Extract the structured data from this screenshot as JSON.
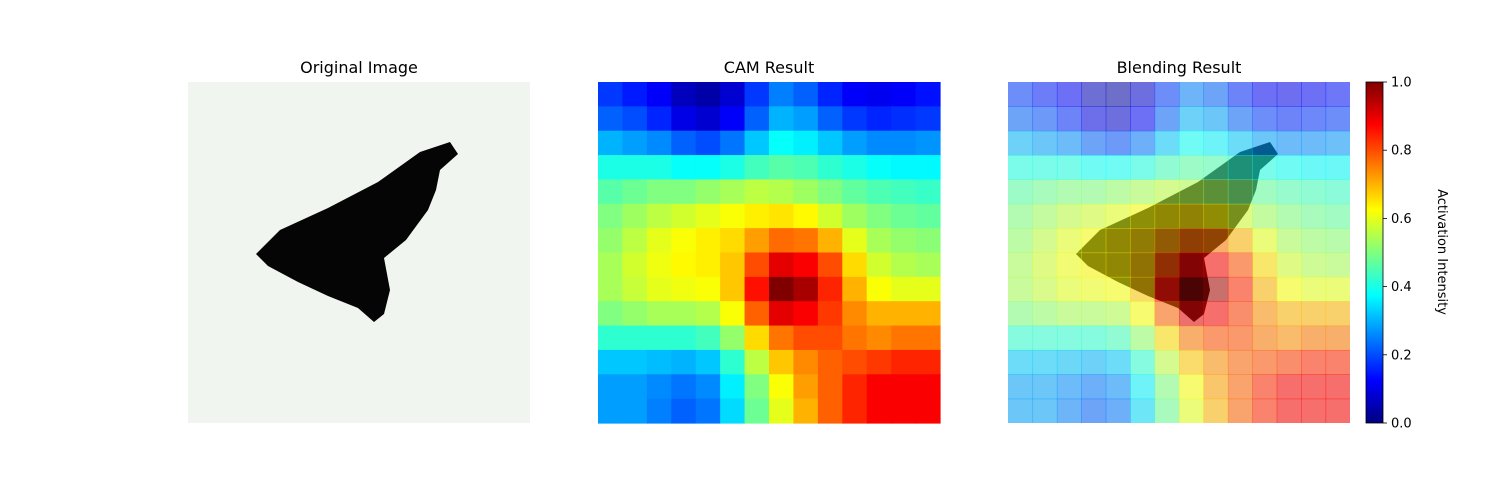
{
  "panels": [
    {
      "title": "Original Image"
    },
    {
      "title": "CAM Result"
    },
    {
      "title": "Blending Result"
    }
  ],
  "colorbar": {
    "label": "Activation Intensity",
    "colormap": "jet",
    "ticks": [
      "0.0",
      "0.2",
      "0.4",
      "0.6",
      "0.8",
      "1.0"
    ]
  },
  "chart_data": [
    {
      "type": "heatmap",
      "title": "Original Image",
      "grid_size": 28,
      "colormap": "gray",
      "foreground_color": "#000000",
      "background_color": "#f1f5ef",
      "axes": "off"
    },
    {
      "type": "heatmap",
      "title": "CAM Result",
      "grid_size": 14,
      "colormap": "jet",
      "vmin": 0.0,
      "vmax": 1.0,
      "peak_value": 1.0,
      "axes": "off",
      "values": [
        [
          0.18,
          0.15,
          0.12,
          0.06,
          0.04,
          0.08,
          0.18,
          0.25,
          0.22,
          0.16,
          0.12,
          0.11,
          0.12,
          0.14
        ],
        [
          0.22,
          0.2,
          0.16,
          0.1,
          0.08,
          0.12,
          0.22,
          0.3,
          0.28,
          0.22,
          0.18,
          0.16,
          0.17,
          0.18
        ],
        [
          0.3,
          0.28,
          0.26,
          0.22,
          0.2,
          0.24,
          0.32,
          0.38,
          0.36,
          0.32,
          0.28,
          0.26,
          0.26,
          0.27
        ],
        [
          0.4,
          0.4,
          0.4,
          0.38,
          0.38,
          0.4,
          0.44,
          0.46,
          0.45,
          0.42,
          0.4,
          0.38,
          0.37,
          0.37
        ],
        [
          0.46,
          0.48,
          0.5,
          0.5,
          0.52,
          0.54,
          0.56,
          0.55,
          0.53,
          0.5,
          0.47,
          0.45,
          0.44,
          0.43
        ],
        [
          0.5,
          0.53,
          0.56,
          0.58,
          0.6,
          0.62,
          0.64,
          0.65,
          0.63,
          0.58,
          0.53,
          0.5,
          0.48,
          0.47
        ],
        [
          0.52,
          0.56,
          0.6,
          0.62,
          0.64,
          0.66,
          0.72,
          0.77,
          0.76,
          0.7,
          0.6,
          0.54,
          0.52,
          0.51
        ],
        [
          0.54,
          0.58,
          0.61,
          0.63,
          0.64,
          0.68,
          0.8,
          0.9,
          0.88,
          0.8,
          0.66,
          0.58,
          0.55,
          0.54
        ],
        [
          0.54,
          0.57,
          0.6,
          0.61,
          0.62,
          0.68,
          0.86,
          1.0,
          0.96,
          0.84,
          0.7,
          0.62,
          0.6,
          0.6
        ],
        [
          0.5,
          0.52,
          0.54,
          0.54,
          0.55,
          0.62,
          0.78,
          0.9,
          0.88,
          0.82,
          0.74,
          0.7,
          0.7,
          0.7
        ],
        [
          0.42,
          0.42,
          0.42,
          0.42,
          0.44,
          0.52,
          0.66,
          0.76,
          0.8,
          0.8,
          0.76,
          0.74,
          0.76,
          0.76
        ],
        [
          0.32,
          0.32,
          0.31,
          0.3,
          0.32,
          0.42,
          0.56,
          0.68,
          0.74,
          0.78,
          0.8,
          0.82,
          0.84,
          0.84
        ],
        [
          0.28,
          0.28,
          0.26,
          0.24,
          0.26,
          0.36,
          0.5,
          0.62,
          0.72,
          0.78,
          0.84,
          0.88,
          0.88,
          0.88
        ],
        [
          0.28,
          0.28,
          0.25,
          0.22,
          0.24,
          0.34,
          0.48,
          0.6,
          0.7,
          0.78,
          0.84,
          0.88,
          0.88,
          0.88
        ]
      ]
    },
    {
      "type": "heatmap",
      "title": "Blending Result",
      "description": "CAM heatmap blended over original image",
      "colormap": "jet",
      "alpha": 0.5,
      "axes": "off"
    }
  ]
}
